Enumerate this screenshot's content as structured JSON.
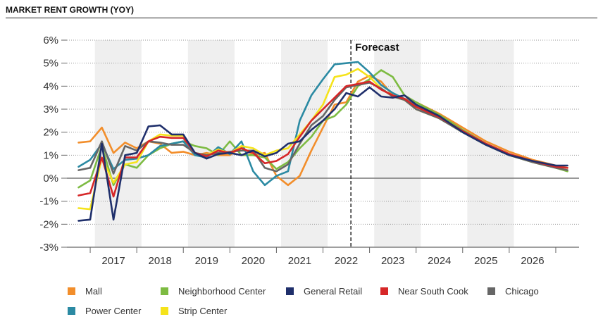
{
  "header": {
    "title": "MARKET RENT GROWTH (YOY)"
  },
  "chart_data": {
    "type": "line",
    "title": "MARKET RENT GROWTH (YOY)",
    "xlabel": "",
    "ylabel": "",
    "x_range": [
      2016.0,
      2027.0
    ],
    "ylim": [
      -3,
      6
    ],
    "y_ticks": [
      -3,
      -2,
      -1,
      0,
      1,
      2,
      3,
      4,
      5,
      6
    ],
    "y_tick_labels": [
      "-3%",
      "-2%",
      "-1%",
      "0%",
      "1%",
      "2%",
      "3%",
      "4%",
      "5%",
      "6%"
    ],
    "x_tick_labels": [
      "2017",
      "2018",
      "2019",
      "2020",
      "2021",
      "2022",
      "2023",
      "2024",
      "2025",
      "2026"
    ],
    "x_tick_positions": [
      2016.5,
      2017.5,
      2018.5,
      2019.5,
      2020.5,
      2021.5,
      2022.5,
      2023.5,
      2024.5,
      2025.5,
      2026.5
    ],
    "shaded_bands": [
      [
        2016.6,
        2017.6
      ],
      [
        2018.6,
        2019.6
      ],
      [
        2020.6,
        2021.6
      ],
      [
        2022.6,
        2023.6
      ],
      [
        2024.6,
        2025.6
      ]
    ],
    "forecast": {
      "x": 2022.1,
      "label": "Forecast"
    },
    "grid": true,
    "legend_position": "bottom",
    "series": [
      {
        "name": "Mall",
        "color": "#f28e2b",
        "points": [
          [
            2016.25,
            1.55
          ],
          [
            2016.5,
            1.6
          ],
          [
            2016.75,
            2.2
          ],
          [
            2017.0,
            1.1
          ],
          [
            2017.25,
            1.55
          ],
          [
            2017.5,
            1.3
          ],
          [
            2017.75,
            1.6
          ],
          [
            2018.0,
            1.5
          ],
          [
            2018.25,
            1.1
          ],
          [
            2018.5,
            1.15
          ],
          [
            2018.75,
            1.0
          ],
          [
            2019.0,
            1.1
          ],
          [
            2019.25,
            1.0
          ],
          [
            2019.5,
            1.0
          ],
          [
            2019.75,
            1.35
          ],
          [
            2020.0,
            1.0
          ],
          [
            2020.25,
            1.1
          ],
          [
            2020.5,
            0.1
          ],
          [
            2020.75,
            -0.3
          ],
          [
            2021.0,
            0.1
          ],
          [
            2021.25,
            1.2
          ],
          [
            2021.5,
            2.2
          ],
          [
            2021.75,
            3.2
          ],
          [
            2022.0,
            3.3
          ],
          [
            2022.25,
            4.2
          ],
          [
            2022.5,
            4.45
          ],
          [
            2022.75,
            4.2
          ],
          [
            2023.0,
            3.6
          ],
          [
            2023.25,
            3.45
          ],
          [
            2023.5,
            3.3
          ],
          [
            2024.0,
            2.8
          ],
          [
            2024.5,
            2.2
          ],
          [
            2025.0,
            1.6
          ],
          [
            2025.5,
            1.15
          ],
          [
            2026.0,
            0.8
          ],
          [
            2026.5,
            0.55
          ],
          [
            2026.75,
            0.45
          ]
        ]
      },
      {
        "name": "Neighborhood Center",
        "color": "#7dbb42",
        "points": [
          [
            2016.25,
            -0.4
          ],
          [
            2016.5,
            -0.1
          ],
          [
            2016.75,
            1.4
          ],
          [
            2017.0,
            -0.3
          ],
          [
            2017.25,
            0.6
          ],
          [
            2017.5,
            0.45
          ],
          [
            2017.75,
            1.0
          ],
          [
            2018.0,
            1.3
          ],
          [
            2018.25,
            1.5
          ],
          [
            2018.5,
            1.6
          ],
          [
            2018.75,
            1.4
          ],
          [
            2019.0,
            1.3
          ],
          [
            2019.25,
            1.0
          ],
          [
            2019.5,
            1.6
          ],
          [
            2019.75,
            1.0
          ],
          [
            2020.0,
            1.0
          ],
          [
            2020.25,
            0.9
          ],
          [
            2020.5,
            0.4
          ],
          [
            2020.75,
            0.7
          ],
          [
            2021.0,
            1.3
          ],
          [
            2021.25,
            1.8
          ],
          [
            2021.5,
            2.5
          ],
          [
            2021.75,
            2.7
          ],
          [
            2022.0,
            3.2
          ],
          [
            2022.25,
            4.0
          ],
          [
            2022.5,
            4.3
          ],
          [
            2022.75,
            4.7
          ],
          [
            2023.0,
            4.4
          ],
          [
            2023.25,
            3.6
          ],
          [
            2023.5,
            3.3
          ],
          [
            2024.0,
            2.75
          ],
          [
            2024.5,
            2.1
          ],
          [
            2025.0,
            1.5
          ],
          [
            2025.5,
            1.05
          ],
          [
            2026.0,
            0.7
          ],
          [
            2026.5,
            0.45
          ],
          [
            2026.75,
            0.3
          ]
        ]
      },
      {
        "name": "General Retail",
        "color": "#1f2f6b",
        "points": [
          [
            2016.25,
            -1.85
          ],
          [
            2016.5,
            -1.8
          ],
          [
            2016.75,
            1.5
          ],
          [
            2017.0,
            -1.8
          ],
          [
            2017.25,
            1.0
          ],
          [
            2017.5,
            1.1
          ],
          [
            2017.75,
            2.25
          ],
          [
            2018.0,
            2.3
          ],
          [
            2018.25,
            1.9
          ],
          [
            2018.5,
            1.9
          ],
          [
            2018.75,
            1.1
          ],
          [
            2019.0,
            0.85
          ],
          [
            2019.25,
            1.05
          ],
          [
            2019.5,
            1.1
          ],
          [
            2019.75,
            1.0
          ],
          [
            2020.0,
            1.2
          ],
          [
            2020.25,
            0.95
          ],
          [
            2020.5,
            1.1
          ],
          [
            2020.75,
            1.5
          ],
          [
            2021.0,
            1.6
          ],
          [
            2021.25,
            2.1
          ],
          [
            2021.5,
            2.5
          ],
          [
            2021.75,
            3.0
          ],
          [
            2022.0,
            3.7
          ],
          [
            2022.25,
            3.55
          ],
          [
            2022.5,
            3.95
          ],
          [
            2022.75,
            3.55
          ],
          [
            2023.0,
            3.5
          ],
          [
            2023.25,
            3.6
          ],
          [
            2023.5,
            3.2
          ],
          [
            2024.0,
            2.7
          ],
          [
            2024.5,
            2.0
          ],
          [
            2025.0,
            1.45
          ],
          [
            2025.5,
            1.0
          ],
          [
            2026.0,
            0.75
          ],
          [
            2026.5,
            0.55
          ],
          [
            2026.75,
            0.55
          ]
        ]
      },
      {
        "name": "Near South Cook",
        "color": "#d62728",
        "points": [
          [
            2016.25,
            -0.75
          ],
          [
            2016.5,
            -0.65
          ],
          [
            2016.75,
            0.9
          ],
          [
            2017.0,
            -0.8
          ],
          [
            2017.25,
            0.9
          ],
          [
            2017.5,
            0.9
          ],
          [
            2017.75,
            1.6
          ],
          [
            2018.0,
            1.8
          ],
          [
            2018.25,
            1.75
          ],
          [
            2018.5,
            1.75
          ],
          [
            2018.75,
            1.1
          ],
          [
            2019.0,
            0.95
          ],
          [
            2019.25,
            1.2
          ],
          [
            2019.5,
            1.1
          ],
          [
            2019.75,
            1.3
          ],
          [
            2020.0,
            1.1
          ],
          [
            2020.25,
            0.65
          ],
          [
            2020.5,
            0.75
          ],
          [
            2020.75,
            1.05
          ],
          [
            2021.0,
            1.8
          ],
          [
            2021.25,
            2.5
          ],
          [
            2021.5,
            3.0
          ],
          [
            2021.75,
            3.5
          ],
          [
            2022.0,
            4.0
          ],
          [
            2022.25,
            4.1
          ],
          [
            2022.5,
            4.2
          ],
          [
            2022.75,
            3.85
          ],
          [
            2023.0,
            3.6
          ],
          [
            2023.25,
            3.45
          ],
          [
            2023.5,
            3.1
          ],
          [
            2024.0,
            2.65
          ],
          [
            2024.5,
            2.05
          ],
          [
            2025.0,
            1.5
          ],
          [
            2025.5,
            1.05
          ],
          [
            2026.0,
            0.75
          ],
          [
            2026.5,
            0.5
          ],
          [
            2026.75,
            0.45
          ]
        ]
      },
      {
        "name": "Chicago",
        "color": "#666666",
        "points": [
          [
            2016.25,
            0.35
          ],
          [
            2016.5,
            0.45
          ],
          [
            2016.75,
            1.6
          ],
          [
            2017.0,
            0.2
          ],
          [
            2017.25,
            1.4
          ],
          [
            2017.5,
            1.2
          ],
          [
            2017.75,
            1.6
          ],
          [
            2018.0,
            1.55
          ],
          [
            2018.25,
            1.45
          ],
          [
            2018.5,
            1.45
          ],
          [
            2018.75,
            1.1
          ],
          [
            2019.0,
            1.0
          ],
          [
            2019.25,
            1.1
          ],
          [
            2019.5,
            1.15
          ],
          [
            2019.75,
            1.2
          ],
          [
            2020.0,
            1.2
          ],
          [
            2020.25,
            0.45
          ],
          [
            2020.5,
            0.3
          ],
          [
            2020.75,
            0.6
          ],
          [
            2021.0,
            1.5
          ],
          [
            2021.25,
            2.3
          ],
          [
            2021.5,
            2.7
          ],
          [
            2021.75,
            3.4
          ],
          [
            2022.0,
            3.95
          ],
          [
            2022.25,
            4.05
          ],
          [
            2022.5,
            4.15
          ],
          [
            2022.75,
            3.9
          ],
          [
            2023.0,
            3.55
          ],
          [
            2023.25,
            3.4
          ],
          [
            2023.5,
            3.0
          ],
          [
            2024.0,
            2.6
          ],
          [
            2024.5,
            2.0
          ],
          [
            2025.0,
            1.45
          ],
          [
            2025.5,
            1.0
          ],
          [
            2026.0,
            0.7
          ],
          [
            2026.5,
            0.45
          ],
          [
            2026.75,
            0.35
          ]
        ]
      },
      {
        "name": "Power Center",
        "color": "#2b8aa3",
        "points": [
          [
            2016.25,
            0.5
          ],
          [
            2016.5,
            0.8
          ],
          [
            2016.75,
            1.5
          ],
          [
            2017.0,
            0.4
          ],
          [
            2017.25,
            0.8
          ],
          [
            2017.5,
            0.85
          ],
          [
            2017.75,
            1.0
          ],
          [
            2018.0,
            1.4
          ],
          [
            2018.25,
            1.5
          ],
          [
            2018.5,
            1.6
          ],
          [
            2018.75,
            1.0
          ],
          [
            2019.0,
            0.9
          ],
          [
            2019.25,
            1.35
          ],
          [
            2019.5,
            1.05
          ],
          [
            2019.75,
            1.6
          ],
          [
            2020.0,
            0.3
          ],
          [
            2020.25,
            -0.3
          ],
          [
            2020.5,
            0.1
          ],
          [
            2020.75,
            0.3
          ],
          [
            2021.0,
            2.5
          ],
          [
            2021.25,
            3.6
          ],
          [
            2021.5,
            4.3
          ],
          [
            2021.75,
            4.95
          ],
          [
            2022.0,
            5.0
          ],
          [
            2022.25,
            5.05
          ],
          [
            2022.5,
            4.6
          ],
          [
            2022.75,
            4.05
          ],
          [
            2023.0,
            3.7
          ],
          [
            2023.25,
            3.45
          ],
          [
            2023.5,
            3.15
          ],
          [
            2024.0,
            2.6
          ],
          [
            2024.5,
            2.0
          ],
          [
            2025.0,
            1.45
          ],
          [
            2025.5,
            1.0
          ],
          [
            2026.0,
            0.7
          ],
          [
            2026.5,
            0.45
          ],
          [
            2026.75,
            0.35
          ]
        ]
      },
      {
        "name": "Strip Center",
        "color": "#f5e31b",
        "points": [
          [
            2016.25,
            -1.3
          ],
          [
            2016.5,
            -1.35
          ],
          [
            2016.75,
            0.9
          ],
          [
            2017.0,
            -0.2
          ],
          [
            2017.25,
            0.6
          ],
          [
            2017.5,
            0.7
          ],
          [
            2017.75,
            1.6
          ],
          [
            2018.0,
            1.9
          ],
          [
            2018.25,
            1.85
          ],
          [
            2018.5,
            1.85
          ],
          [
            2018.75,
            1.1
          ],
          [
            2019.0,
            1.0
          ],
          [
            2019.25,
            1.25
          ],
          [
            2019.5,
            1.1
          ],
          [
            2019.75,
            1.4
          ],
          [
            2020.0,
            1.3
          ],
          [
            2020.25,
            1.0
          ],
          [
            2020.5,
            1.2
          ],
          [
            2020.75,
            1.3
          ],
          [
            2021.0,
            1.9
          ],
          [
            2021.25,
            2.5
          ],
          [
            2021.5,
            3.2
          ],
          [
            2021.75,
            4.4
          ],
          [
            2022.0,
            4.5
          ],
          [
            2022.25,
            4.75
          ],
          [
            2022.5,
            4.4
          ],
          [
            2022.75,
            3.9
          ],
          [
            2023.0,
            3.55
          ],
          [
            2023.25,
            3.4
          ],
          [
            2023.5,
            3.0
          ],
          [
            2024.0,
            2.6
          ],
          [
            2024.5,
            2.0
          ],
          [
            2025.0,
            1.45
          ],
          [
            2025.5,
            1.0
          ],
          [
            2026.0,
            0.7
          ],
          [
            2026.5,
            0.45
          ],
          [
            2026.75,
            0.35
          ]
        ]
      }
    ]
  },
  "legend": {
    "items": [
      {
        "label": "Mall",
        "color": "#f28e2b"
      },
      {
        "label": "Neighborhood Center",
        "color": "#7dbb42"
      },
      {
        "label": "General Retail",
        "color": "#1f2f6b"
      },
      {
        "label": "Near South Cook",
        "color": "#d62728"
      },
      {
        "label": "Chicago",
        "color": "#666666"
      },
      {
        "label": "Power Center",
        "color": "#2b8aa3"
      },
      {
        "label": "Strip Center",
        "color": "#f5e31b"
      }
    ]
  }
}
